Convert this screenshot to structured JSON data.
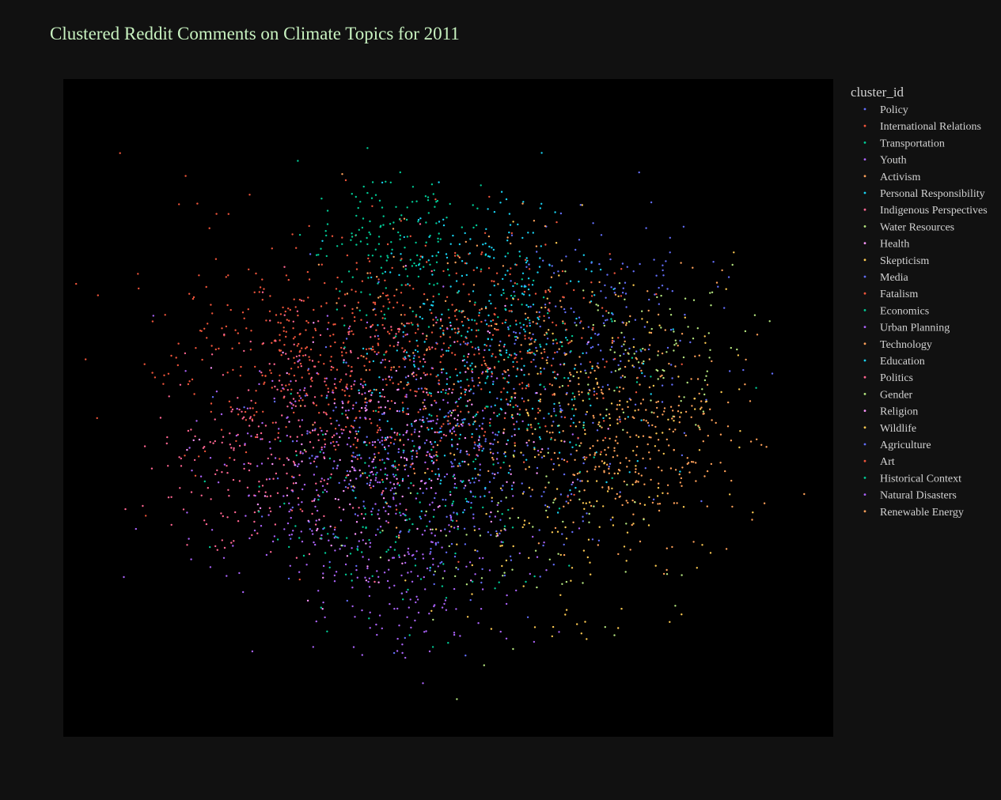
{
  "chart_data": {
    "type": "scatter",
    "title": "Clustered Reddit Comments on Climate Topics for 2011",
    "xlabel": "",
    "ylabel": "",
    "xlim": [
      -9,
      9
    ],
    "ylim": [
      -9,
      9
    ],
    "grid": false,
    "legend": {
      "title": "cluster_id",
      "placement": "right"
    },
    "colors": {
      "page_background": "#111111",
      "plot_background": "#000000",
      "title": "#c8f2c0",
      "legend_text": "#d2d2d2"
    },
    "series": [
      {
        "name": "Policy",
        "color": "#636efa",
        "center": [
          -0.5,
          -1.5
        ],
        "spread": 2.6,
        "count": 190
      },
      {
        "name": "International Relations",
        "color": "#ef553b",
        "center": [
          -3.3,
          1.6
        ],
        "spread": 2.4,
        "count": 330
      },
      {
        "name": "Transportation",
        "color": "#00cc96",
        "center": [
          -1.2,
          4.6
        ],
        "spread": 1.4,
        "count": 140
      },
      {
        "name": "Youth",
        "color": "#ab63fa",
        "center": [
          -2.6,
          -2.2
        ],
        "spread": 2.4,
        "count": 170
      },
      {
        "name": "Activism",
        "color": "#ffa15a",
        "center": [
          4.5,
          -0.2
        ],
        "spread": 1.9,
        "count": 160
      },
      {
        "name": "Personal Responsibility",
        "color": "#19d3f3",
        "center": [
          0.6,
          0.2
        ],
        "spread": 2.2,
        "count": 210
      },
      {
        "name": "Indigenous Perspectives",
        "color": "#ff6692",
        "center": [
          -4.4,
          -1.3
        ],
        "spread": 1.9,
        "count": 180
      },
      {
        "name": "Water Resources",
        "color": "#b6e880",
        "center": [
          4.9,
          1.6
        ],
        "spread": 1.6,
        "count": 90
      },
      {
        "name": "Health",
        "color": "#ff97ff",
        "center": [
          -2.0,
          -1.9
        ],
        "spread": 2.0,
        "count": 120
      },
      {
        "name": "Skepticism",
        "color": "#fecb52",
        "center": [
          2.9,
          -3.3
        ],
        "spread": 2.4,
        "count": 110
      },
      {
        "name": "Media",
        "color": "#636efa",
        "center": [
          3.4,
          2.4
        ],
        "spread": 1.9,
        "count": 170
      },
      {
        "name": "Fatalism",
        "color": "#ef553b",
        "center": [
          -0.8,
          1.2
        ],
        "spread": 2.3,
        "count": 250
      },
      {
        "name": "Economics",
        "color": "#00cc96",
        "center": [
          -1.3,
          -3.1
        ],
        "spread": 2.0,
        "count": 120
      },
      {
        "name": "Urban Planning",
        "color": "#ab63fa",
        "center": [
          -0.7,
          -4.6
        ],
        "spread": 1.6,
        "count": 130
      },
      {
        "name": "Technology",
        "color": "#ffa15a",
        "center": [
          4.1,
          -1.4
        ],
        "spread": 1.8,
        "count": 150
      },
      {
        "name": "Education",
        "color": "#19d3f3",
        "center": [
          1.0,
          3.6
        ],
        "spread": 1.7,
        "count": 150
      },
      {
        "name": "Politics",
        "color": "#ff6692",
        "center": [
          -2.2,
          0.2
        ],
        "spread": 2.3,
        "count": 120
      },
      {
        "name": "Gender",
        "color": "#b6e880",
        "center": [
          2.1,
          -2.8
        ],
        "spread": 2.6,
        "count": 70
      },
      {
        "name": "Religion",
        "color": "#ff97ff",
        "center": [
          -0.3,
          -0.4
        ],
        "spread": 2.2,
        "count": 90
      },
      {
        "name": "Wildlife",
        "color": "#fecb52",
        "center": [
          3.4,
          0.7
        ],
        "spread": 2.4,
        "count": 90
      },
      {
        "name": "Agriculture",
        "color": "#636efa",
        "center": [
          0.9,
          -1.7
        ],
        "spread": 2.3,
        "count": 140
      },
      {
        "name": "Art",
        "color": "#ef553b",
        "center": [
          1.6,
          1.7
        ],
        "spread": 2.2,
        "count": 160
      },
      {
        "name": "Historical Context",
        "color": "#00cc96",
        "center": [
          1.2,
          1.2
        ],
        "spread": 2.7,
        "count": 110
      },
      {
        "name": "Natural Disasters",
        "color": "#ab63fa",
        "center": [
          -1.6,
          -1.0
        ],
        "spread": 2.5,
        "count": 160
      },
      {
        "name": "Renewable Energy",
        "color": "#ffa15a",
        "center": [
          0.8,
          1.8
        ],
        "spread": 2.7,
        "count": 150
      }
    ]
  }
}
